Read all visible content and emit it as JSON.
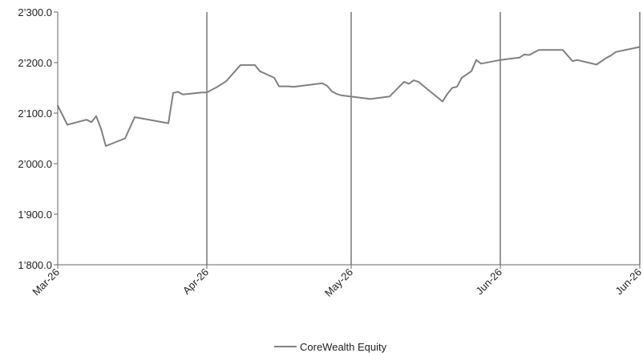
{
  "chart_data": {
    "type": "line",
    "title": "",
    "xlabel": "",
    "ylabel": "",
    "ylim": [
      1800,
      2300
    ],
    "yticks": [
      "1’800.0",
      "1’900.0",
      "2’000.0",
      "2’100.0",
      "2’200.0",
      "2’300.0"
    ],
    "yticks_values": [
      1800,
      1900,
      2000,
      2100,
      2200,
      2300
    ],
    "xlim": [
      "2026-03-01",
      "2026-06-30"
    ],
    "xticks": [
      {
        "date": "2026-03-01",
        "label": "Mar-26"
      },
      {
        "date": "2026-04-01",
        "label": "Apr-26"
      },
      {
        "date": "2026-05-01",
        "label": "May-26"
      },
      {
        "date": "2026-06-01",
        "label": "Jun-26"
      },
      {
        "date": "2026-06-30",
        "label": "Jun-26"
      }
    ],
    "vertical_gridlines": true,
    "horizontal_gridlines": false,
    "legend_position": "bottom-center",
    "series": [
      {
        "name": "CoreWealth Equity",
        "color": "#808080",
        "x": [
          "2026-03-01",
          "2026-03-03",
          "2026-03-07",
          "2026-03-08",
          "2026-03-09",
          "2026-03-10",
          "2026-03-11",
          "2026-03-15",
          "2026-03-17",
          "2026-03-24",
          "2026-03-25",
          "2026-03-26",
          "2026-03-27",
          "2026-03-31",
          "2026-04-01",
          "2026-04-02",
          "2026-04-03",
          "2026-04-05",
          "2026-04-08",
          "2026-04-09",
          "2026-04-10",
          "2026-04-11",
          "2026-04-12",
          "2026-04-15",
          "2026-04-16",
          "2026-04-17",
          "2026-04-18",
          "2026-04-19",
          "2026-04-25",
          "2026-04-26",
          "2026-04-27",
          "2026-04-28",
          "2026-04-29",
          "2026-05-05",
          "2026-05-09",
          "2026-05-12",
          "2026-05-13",
          "2026-05-14",
          "2026-05-15",
          "2026-05-16",
          "2026-05-20",
          "2026-05-21",
          "2026-05-22",
          "2026-05-23",
          "2026-05-24",
          "2026-05-26",
          "2026-05-27",
          "2026-05-28",
          "2026-06-01",
          "2026-06-05",
          "2026-06-06",
          "2026-06-07",
          "2026-06-09",
          "2026-06-13",
          "2026-06-14",
          "2026-06-16",
          "2026-06-17",
          "2026-06-21",
          "2026-06-23",
          "2026-06-24",
          "2026-06-25",
          "2026-06-30"
        ],
        "values": [
          2115,
          2077,
          2087,
          2082,
          2094,
          2069,
          2035,
          2050,
          2092,
          2080,
          2140,
          2142,
          2137,
          2141,
          2141,
          2146,
          2151,
          2163,
          2195,
          2195,
          2195,
          2195,
          2183,
          2170,
          2153,
          2153,
          2153,
          2152,
          2159,
          2154,
          2143,
          2138,
          2135,
          2128,
          2133,
          2162,
          2158,
          2165,
          2162,
          2154,
          2123,
          2138,
          2150,
          2152,
          2170,
          2183,
          2205,
          2198,
          2205,
          2210,
          2216,
          2215,
          2225,
          2225,
          2225,
          2203,
          2205,
          2196,
          2209,
          2214,
          2221,
          2231
        ]
      }
    ]
  }
}
